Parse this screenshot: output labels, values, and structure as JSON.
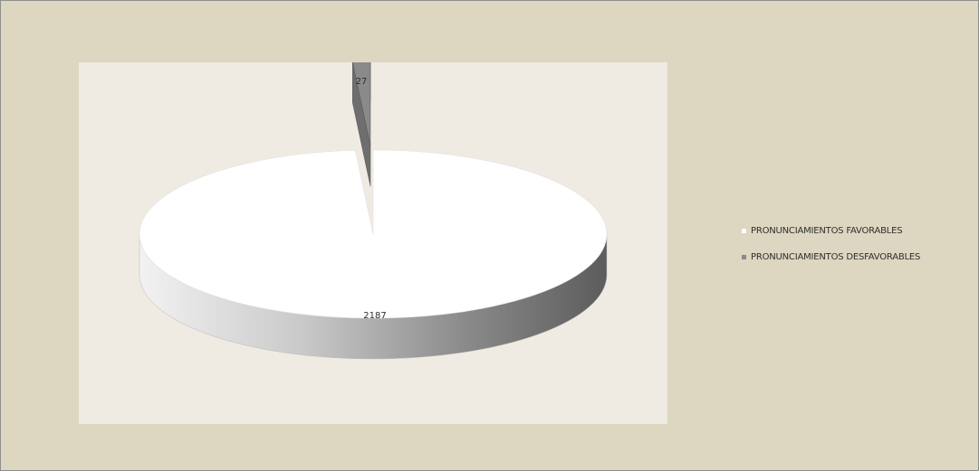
{
  "chart_data": {
    "type": "pie",
    "title": "",
    "categories": [
      "PRONUNCIAMIENTOS FAVORABLES",
      "PRONUNCIAMIENTOS DESFAVORABLES"
    ],
    "values": [
      2187,
      27
    ],
    "data_labels": [
      "2187",
      "27"
    ],
    "colors": [
      "#ffffff",
      "#8a8a8a"
    ],
    "legend_position": "right",
    "style": "3d-pie",
    "exploded_slice": "PRONUNCIAMIENTOS DESFAVORABLES"
  },
  "colors": {
    "background": "#ddd6c0",
    "plot_area": "#efebe3",
    "frame_border": "#8f8f8f"
  }
}
